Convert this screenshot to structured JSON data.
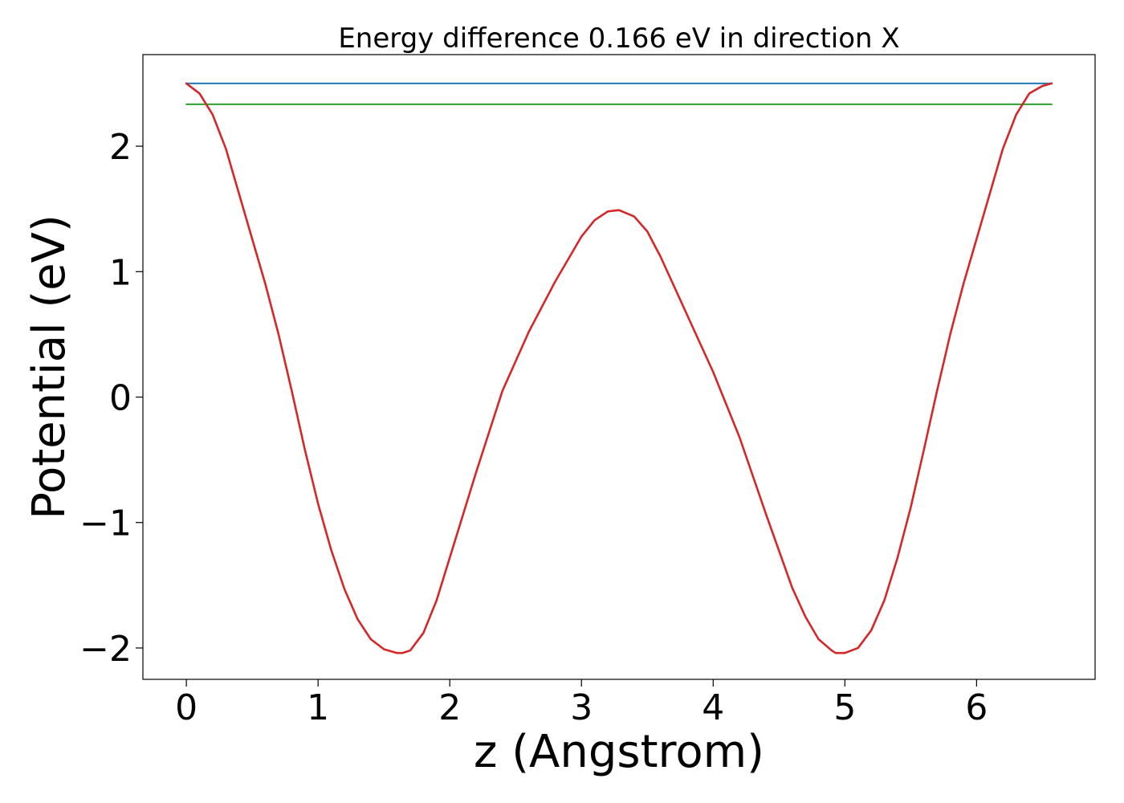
{
  "chart_data": {
    "type": "line",
    "title": "Energy difference 0.166 eV in direction X",
    "xlabel": "z (Angstrom)",
    "ylabel": "Potential (eV)",
    "xlim": [
      -0.33,
      6.9
    ],
    "ylim": [
      -2.25,
      2.73
    ],
    "xticks": [
      0,
      1,
      2,
      3,
      4,
      5,
      6
    ],
    "yticks": [
      -2,
      -1,
      0,
      1,
      2
    ],
    "xtick_labels": [
      "0",
      "1",
      "2",
      "3",
      "4",
      "5",
      "6"
    ],
    "ytick_labels": [
      "−2",
      "−1",
      "0",
      "1",
      "2"
    ],
    "grid": false,
    "legend": "none",
    "series": [
      {
        "color": "#1f77b4",
        "x": [
          0,
          6.57
        ],
        "y": [
          2.5,
          2.5
        ]
      },
      {
        "color": "#2ca02c",
        "x": [
          0,
          6.57
        ],
        "y": [
          2.334,
          2.334
        ]
      },
      {
        "color": "#d62728",
        "x": [
          0,
          0.1,
          0.2,
          0.3,
          0.4,
          0.5,
          0.6,
          0.7,
          0.8,
          0.9,
          1.0,
          1.1,
          1.2,
          1.3,
          1.4,
          1.5,
          1.6,
          1.64,
          1.7,
          1.8,
          1.9,
          2.0,
          2.2,
          2.4,
          2.6,
          2.8,
          3.0,
          3.1,
          3.2,
          3.285,
          3.4,
          3.5,
          3.6,
          3.8,
          4.0,
          4.2,
          4.4,
          4.6,
          4.7,
          4.8,
          4.9,
          4.93,
          5.0,
          5.1,
          5.2,
          5.3,
          5.4,
          5.5,
          5.6,
          5.7,
          5.8,
          5.9,
          6.0,
          6.1,
          6.2,
          6.3,
          6.4,
          6.5,
          6.57
        ],
        "y": [
          2.5,
          2.42,
          2.25,
          1.98,
          1.62,
          1.26,
          0.9,
          0.5,
          0.05,
          -0.42,
          -0.85,
          -1.22,
          -1.53,
          -1.77,
          -1.93,
          -2.01,
          -2.04,
          -2.04,
          -2.02,
          -1.88,
          -1.62,
          -1.28,
          -0.6,
          0.05,
          0.52,
          0.92,
          1.28,
          1.41,
          1.48,
          1.49,
          1.44,
          1.32,
          1.12,
          0.66,
          0.2,
          -0.32,
          -0.93,
          -1.52,
          -1.75,
          -1.93,
          -2.02,
          -2.04,
          -2.04,
          -2.0,
          -1.86,
          -1.62,
          -1.28,
          -0.88,
          -0.42,
          0.05,
          0.5,
          0.9,
          1.26,
          1.62,
          1.98,
          2.25,
          2.42,
          2.48,
          2.5
        ]
      }
    ]
  }
}
